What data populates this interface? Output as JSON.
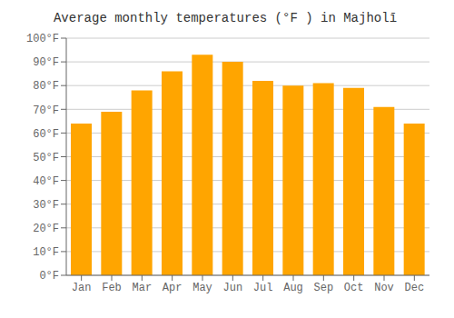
{
  "chart_data": {
    "type": "bar",
    "title": "Average monthly temperatures (°F ) in Majholī",
    "categories": [
      "Jan",
      "Feb",
      "Mar",
      "Apr",
      "May",
      "Jun",
      "Jul",
      "Aug",
      "Sep",
      "Oct",
      "Nov",
      "Dec"
    ],
    "values": [
      64,
      69,
      78,
      86,
      93,
      90,
      82,
      80,
      81,
      79,
      71,
      64
    ],
    "color": "#FFA500",
    "ylim": [
      0,
      100
    ],
    "yticks": [
      {
        "value": 0,
        "label": "0°F"
      },
      {
        "value": 10,
        "label": "10°F"
      },
      {
        "value": 20,
        "label": "20°F"
      },
      {
        "value": 30,
        "label": "30°F"
      },
      {
        "value": 40,
        "label": "40°F"
      },
      {
        "value": 50,
        "label": "50°F"
      },
      {
        "value": 60,
        "label": "60°F"
      },
      {
        "value": 70,
        "label": "70°F"
      },
      {
        "value": 80,
        "label": "80°F"
      },
      {
        "value": 90,
        "label": "90°F"
      },
      {
        "value": 100,
        "label": "100°F"
      }
    ],
    "grid": true
  }
}
